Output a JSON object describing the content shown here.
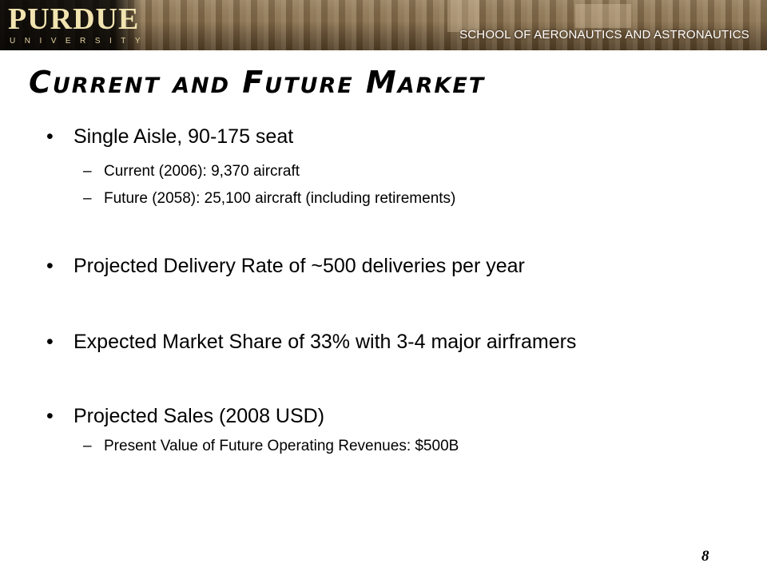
{
  "header": {
    "logo_main": "PURDUE",
    "logo_sub": "UNIVERSITY",
    "school": "SCHOOL OF AERONAUTICS AND ASTRONAUTICS"
  },
  "slide": {
    "title": "Current and Future Market",
    "bullets": [
      {
        "text": "Single Aisle, 90-175 seat",
        "subs": [
          "Current (2006): 9,370 aircraft",
          "Future (2058): 25,100 aircraft (including retirements)"
        ]
      },
      {
        "text": "Projected Delivery Rate of ~500 deliveries per year",
        "subs": []
      },
      {
        "text": "Expected Market Share of 33% with 3-4 major airframers",
        "subs": []
      },
      {
        "text": "Projected Sales (2008 USD)",
        "subs": [
          "Present Value of Future Operating Revenues: $500B"
        ]
      }
    ],
    "page_number": "8"
  }
}
